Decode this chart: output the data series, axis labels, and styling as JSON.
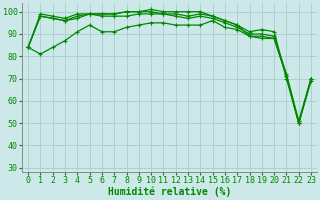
{
  "xlabel": "Humidité relative (%)",
  "ylabel": "",
  "background_color": "#cce8e8",
  "grid_color": "#aacccc",
  "line_color": "#008800",
  "marker": "+",
  "xlim": [
    -0.5,
    23.5
  ],
  "ylim": [
    28,
    104
  ],
  "yticks": [
    30,
    40,
    50,
    60,
    70,
    80,
    90,
    100
  ],
  "xticks": [
    0,
    1,
    2,
    3,
    4,
    5,
    6,
    7,
    8,
    9,
    10,
    11,
    12,
    13,
    14,
    15,
    16,
    17,
    18,
    19,
    20,
    21,
    22,
    23
  ],
  "series": [
    [
      84,
      81,
      84,
      87,
      91,
      94,
      91,
      91,
      93,
      94,
      95,
      95,
      94,
      94,
      94,
      96,
      93,
      92,
      89,
      88,
      88,
      71,
      50,
      69
    ],
    [
      84,
      98,
      97,
      96,
      97,
      99,
      98,
      98,
      98,
      99,
      99,
      99,
      98,
      97,
      98,
      97,
      95,
      93,
      90,
      90,
      89,
      72,
      51,
      70
    ],
    [
      84,
      98,
      97,
      96,
      98,
      99,
      99,
      99,
      100,
      100,
      101,
      100,
      100,
      100,
      100,
      98,
      96,
      94,
      91,
      92,
      91,
      70,
      50,
      70
    ],
    [
      84,
      99,
      98,
      97,
      99,
      99,
      99,
      99,
      100,
      100,
      100,
      99,
      99,
      98,
      99,
      98,
      96,
      94,
      89,
      89,
      88,
      71,
      50,
      70
    ]
  ],
  "figsize": [
    3.2,
    2.0
  ],
  "dpi": 100,
  "xlabel_fontsize": 7,
  "tick_fontsize": 6,
  "line_width": 0.9,
  "marker_size": 3,
  "marker_edge_width": 0.8
}
